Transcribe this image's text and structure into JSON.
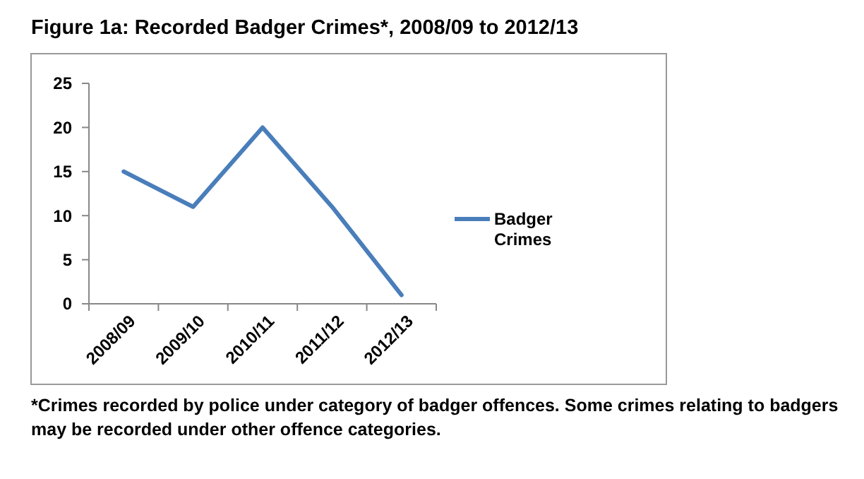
{
  "chart_data": {
    "type": "line",
    "title": "Figure 1a: Recorded Badger Crimes*, 2008/09 to 2012/13",
    "categories": [
      "2008/09",
      "2009/10",
      "2010/11",
      "2011/12",
      "2012/13"
    ],
    "series": [
      {
        "name": "Badger Crimes",
        "color": "#4a7ebb",
        "values": [
          15,
          11,
          20,
          11,
          1
        ]
      }
    ],
    "ylim": [
      0,
      25
    ],
    "yticks": [
      0,
      5,
      10,
      15,
      20,
      25
    ],
    "grid": false,
    "legend": "right",
    "marker": "none",
    "line_style": "solid",
    "annotations": [
      "*Crimes recorded by police under category of badger offences. Some crimes relating to badgers may be recorded under other offence categories."
    ]
  }
}
